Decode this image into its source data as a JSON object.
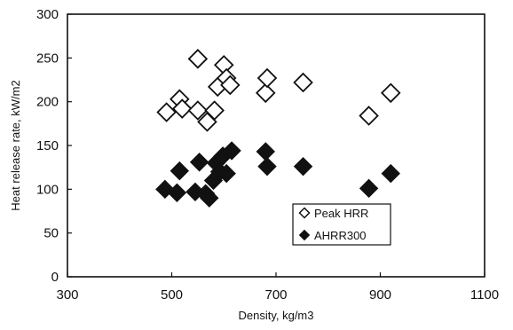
{
  "chart_data": {
    "type": "scatter",
    "title": "",
    "xlabel": "Density, kg/m3",
    "ylabel": "Heat release rate, kW/m2",
    "xlim": [
      300,
      1100
    ],
    "ylim": [
      0,
      300
    ],
    "x_ticks": [
      300,
      500,
      700,
      900,
      1100
    ],
    "y_ticks": [
      0,
      50,
      100,
      150,
      200,
      250,
      300
    ],
    "grid": false,
    "legend_position": "lower-right inside",
    "series": [
      {
        "name": "Peak HRR",
        "marker": "open-diamond",
        "color": "#111111",
        "points": [
          {
            "x": 490,
            "y": 188
          },
          {
            "x": 515,
            "y": 203
          },
          {
            "x": 520,
            "y": 192
          },
          {
            "x": 550,
            "y": 249
          },
          {
            "x": 550,
            "y": 190
          },
          {
            "x": 568,
            "y": 177
          },
          {
            "x": 582,
            "y": 190
          },
          {
            "x": 588,
            "y": 217
          },
          {
            "x": 600,
            "y": 242
          },
          {
            "x": 605,
            "y": 227
          },
          {
            "x": 612,
            "y": 219
          },
          {
            "x": 680,
            "y": 210
          },
          {
            "x": 683,
            "y": 227
          },
          {
            "x": 752,
            "y": 222
          },
          {
            "x": 878,
            "y": 184
          },
          {
            "x": 920,
            "y": 210
          }
        ]
      },
      {
        "name": "AHRR300",
        "marker": "filled-diamond",
        "color": "#111111",
        "points": [
          {
            "x": 487,
            "y": 100
          },
          {
            "x": 510,
            "y": 96
          },
          {
            "x": 515,
            "y": 121
          },
          {
            "x": 545,
            "y": 97
          },
          {
            "x": 553,
            "y": 131
          },
          {
            "x": 565,
            "y": 95
          },
          {
            "x": 572,
            "y": 90
          },
          {
            "x": 580,
            "y": 110
          },
          {
            "x": 585,
            "y": 130
          },
          {
            "x": 592,
            "y": 120
          },
          {
            "x": 598,
            "y": 138
          },
          {
            "x": 605,
            "y": 118
          },
          {
            "x": 615,
            "y": 144
          },
          {
            "x": 680,
            "y": 143
          },
          {
            "x": 683,
            "y": 126
          },
          {
            "x": 752,
            "y": 126
          },
          {
            "x": 878,
            "y": 101
          },
          {
            "x": 920,
            "y": 118
          }
        ]
      }
    ]
  }
}
